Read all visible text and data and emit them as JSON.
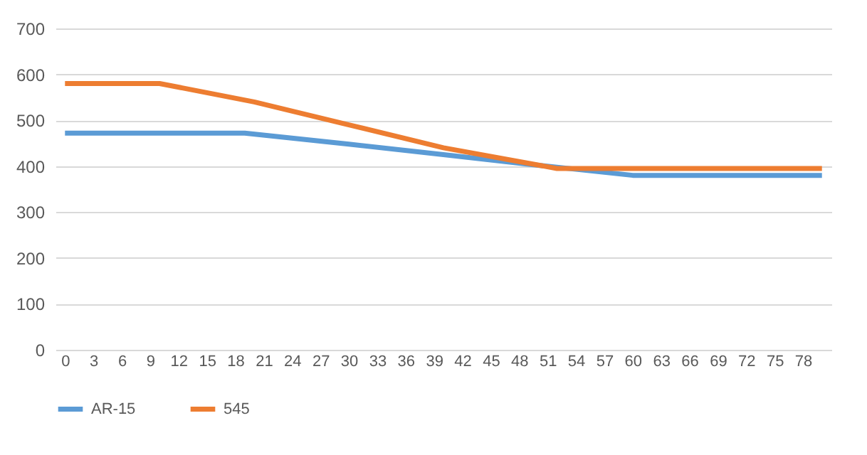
{
  "chart_data": {
    "type": "line",
    "series": [
      {
        "name": "AR-15",
        "color": "#5b9bd5",
        "x": [
          0,
          19,
          30,
          40,
          50,
          60,
          80
        ],
        "values": [
          472,
          472,
          448,
          425,
          402,
          380,
          380
        ]
      },
      {
        "name": "545",
        "color": "#ed7d31",
        "x": [
          0,
          10,
          20,
          30,
          40,
          52,
          80
        ],
        "values": [
          580,
          580,
          540,
          490,
          440,
          395,
          395
        ]
      }
    ],
    "xlim": [
      -1,
      81
    ],
    "xticks": [
      0,
      3,
      6,
      9,
      12,
      15,
      18,
      21,
      24,
      27,
      30,
      33,
      36,
      39,
      42,
      45,
      48,
      51,
      54,
      57,
      60,
      63,
      66,
      69,
      72,
      75,
      78
    ],
    "ylim": [
      0,
      700
    ],
    "yticks": [
      0,
      100,
      200,
      300,
      400,
      500,
      600,
      700
    ],
    "grid": "y",
    "legend": "bottom",
    "marker": "none",
    "line_style": "solid"
  }
}
